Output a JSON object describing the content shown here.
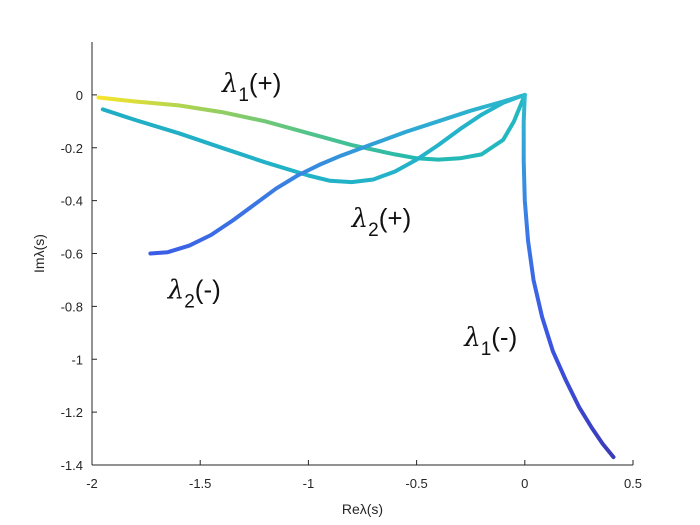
{
  "chart_data": {
    "type": "line",
    "title": "",
    "xlabel": "Reλ(s)",
    "ylabel": "Imλ(s)",
    "xlim": [
      -2,
      0.5
    ],
    "ylim": [
      -1.4,
      0.2
    ],
    "xticks": [
      -2,
      -1.5,
      -1,
      -0.5,
      0,
      0.5
    ],
    "xtick_labels": [
      "-2",
      "-1.5",
      "-1",
      "-0.5",
      "0",
      "0.5"
    ],
    "yticks": [
      0,
      -0.2,
      -0.4,
      -0.6,
      -0.8,
      -1,
      -1.2,
      -1.4
    ],
    "ytick_labels": [
      "0",
      "-0.2",
      "-0.4",
      "-0.6",
      "-0.8",
      "-1",
      "-1.2",
      "-1.4"
    ],
    "grid": false,
    "legend": "none",
    "series": [
      {
        "colors": [
          "#f7e52a",
          "#9ed05a",
          "#4fc38b",
          "#24b9b0",
          "#23b7c4"
        ],
        "x": [
          -1.97,
          -1.8,
          -1.6,
          -1.4,
          -1.2,
          -1.0,
          -0.8,
          -0.6,
          -0.5,
          -0.4,
          -0.3,
          -0.2,
          -0.1,
          -0.05,
          0.0
        ],
        "y": [
          -0.01,
          -0.025,
          -0.04,
          -0.065,
          -0.1,
          -0.145,
          -0.19,
          -0.225,
          -0.24,
          -0.245,
          -0.24,
          -0.225,
          -0.17,
          -0.1,
          -0.0
        ]
      },
      {
        "colors": [
          "#20aec4",
          "#22b2c8",
          "#25b4ca"
        ],
        "x": [
          -1.95,
          -1.8,
          -1.6,
          -1.4,
          -1.2,
          -1.0,
          -0.9,
          -0.8,
          -0.7,
          -0.6,
          -0.5,
          -0.4,
          -0.3,
          -0.2,
          -0.1,
          -0.02
        ],
        "y": [
          -0.055,
          -0.095,
          -0.145,
          -0.2,
          -0.255,
          -0.305,
          -0.325,
          -0.33,
          -0.32,
          -0.29,
          -0.245,
          -0.19,
          -0.13,
          -0.075,
          -0.03,
          -0.005
        ]
      },
      {
        "colors": [
          "#3b5ce6",
          "#3a7be3",
          "#2fa7d4",
          "#2bb8cc"
        ],
        "x": [
          -1.73,
          -1.65,
          -1.55,
          -1.45,
          -1.35,
          -1.25,
          -1.15,
          -1.05,
          -0.95,
          -0.85,
          -0.7,
          -0.55,
          -0.4,
          -0.25,
          -0.1,
          0.0
        ],
        "y": [
          -0.6,
          -0.595,
          -0.57,
          -0.53,
          -0.475,
          -0.415,
          -0.355,
          -0.305,
          -0.265,
          -0.23,
          -0.185,
          -0.14,
          -0.1,
          -0.06,
          -0.025,
          0.0
        ]
      },
      {
        "colors": [
          "#2fbccf",
          "#3b7ce6",
          "#3b53e2",
          "#3b3bb8"
        ],
        "x": [
          0.0,
          -0.005,
          -0.005,
          0.0,
          0.015,
          0.04,
          0.08,
          0.13,
          0.19,
          0.25,
          0.31,
          0.36,
          0.41
        ],
        "y": [
          0.0,
          -0.1,
          -0.25,
          -0.4,
          -0.55,
          -0.7,
          -0.84,
          -0.97,
          -1.08,
          -1.18,
          -1.26,
          -1.32,
          -1.37
        ]
      }
    ],
    "annotations": [
      {
        "text": "λ",
        "sub": "1",
        "suffix": "(+)",
        "x": -1.4,
        "y": 0.01
      },
      {
        "text": "λ",
        "sub": "2",
        "suffix": "(+)",
        "x": -0.8,
        "y": -0.5
      },
      {
        "text": "λ",
        "sub": "2",
        "suffix": "(-)",
        "x": -1.65,
        "y": -0.77
      },
      {
        "text": "λ",
        "sub": "1",
        "suffix": "(-)",
        "x": -0.28,
        "y": -0.95
      }
    ]
  }
}
